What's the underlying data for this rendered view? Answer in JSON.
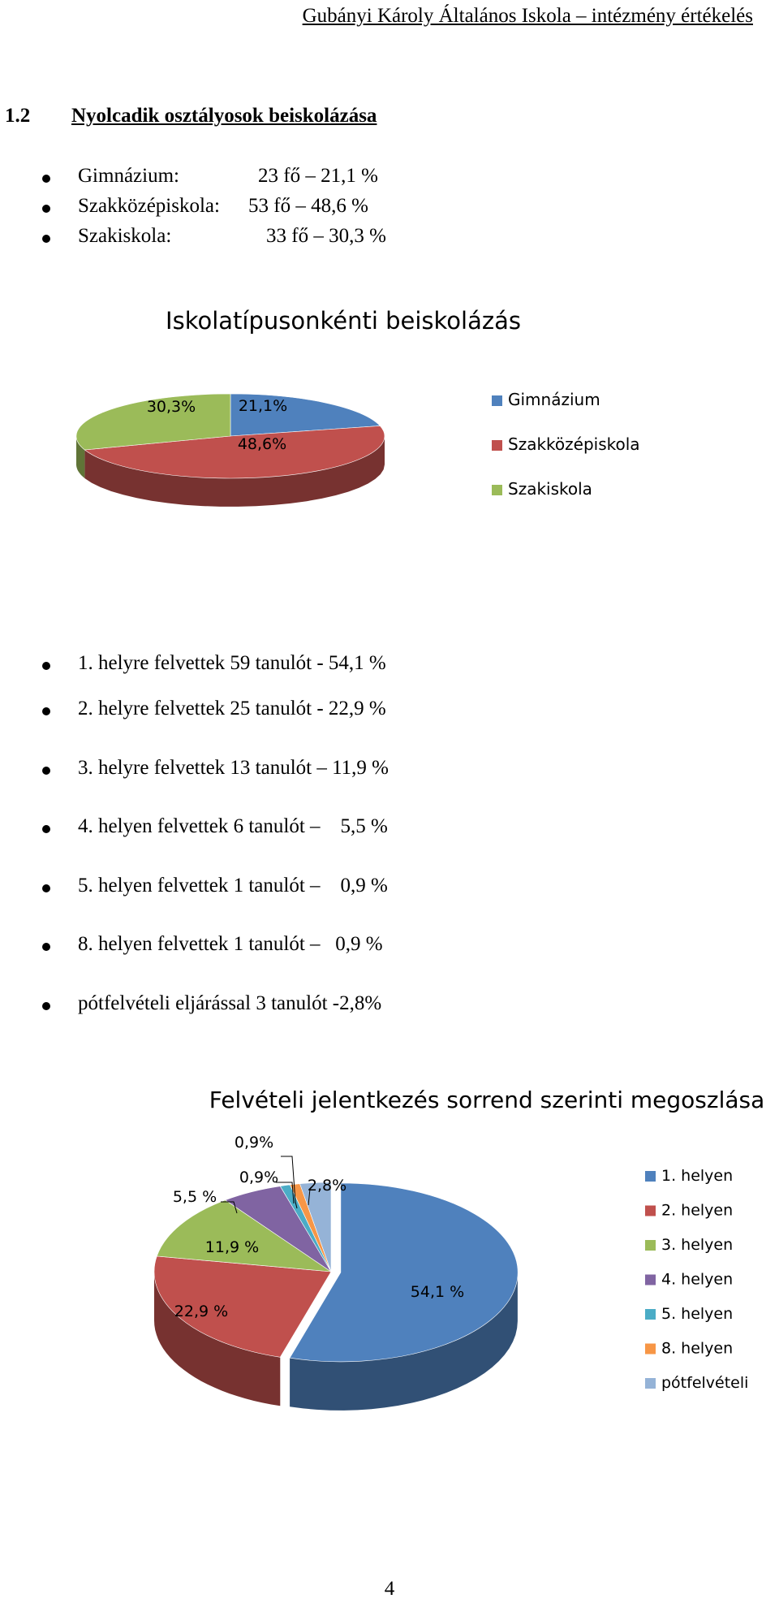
{
  "header": "Gubányi Károly Általános Iskola – intézmény értékelés",
  "section": {
    "number": "1.2",
    "title": "Nyolcadik osztályosok beiskolázása"
  },
  "school_types": [
    {
      "name": "Gimnázium:",
      "value": "23  fő – 21,1 %"
    },
    {
      "name": "Szakközépiskola:",
      "value": "53  fő – 48,6 %"
    },
    {
      "name": "Szakiskola:",
      "value": "33 fő – 30,3 %"
    }
  ],
  "admission_list": [
    "1. helyre felvettek 59 tanulót - 54,1 %",
    "2. helyre felvettek 25 tanulót - 22,9 %",
    "3. helyre felvettek 13 tanulót – 11,9 %",
    "4. helyen felvettek 6 tanulót –    5,5 %",
    "5. helyen felvettek 1 tanulót –    0,9 %",
    "8. helyen felvettek 1 tanulót –   0,9 %",
    "pótfelvételi eljárással 3 tanulót -2,8%"
  ],
  "page_number": "4",
  "chart_data": [
    {
      "type": "pie",
      "title": "Iskolatípusonkénti  beiskolázás",
      "categories": [
        "Gimnázium",
        "Szakközépiskola",
        "Szakiskola"
      ],
      "values": [
        21.1,
        48.6,
        30.3
      ],
      "labels": [
        "21,1%",
        "48,6%",
        "30,3%"
      ],
      "colors": [
        "#4f81bd",
        "#c0504d",
        "#9bbb59"
      ],
      "legend": "right"
    },
    {
      "type": "pie",
      "title": "Felvételi jelentkezés sorrend szerinti megoszlása",
      "categories": [
        "1. helyen",
        "2. helyen",
        "3. helyen",
        "4. helyen",
        "5. helyen",
        "8. helyen",
        "pótfelvételi"
      ],
      "values": [
        54.1,
        22.9,
        11.9,
        5.5,
        0.9,
        0.9,
        2.8
      ],
      "labels": [
        "54,1 %",
        "22,9 %",
        "11,9 %",
        "5,5 %",
        "0,9%",
        "0,9%",
        "2,8%"
      ],
      "colors": [
        "#4f81bd",
        "#c0504d",
        "#9bbb59",
        "#8064a2",
        "#4bacc6",
        "#f79646",
        "#95b3d7"
      ],
      "legend": "right"
    }
  ]
}
